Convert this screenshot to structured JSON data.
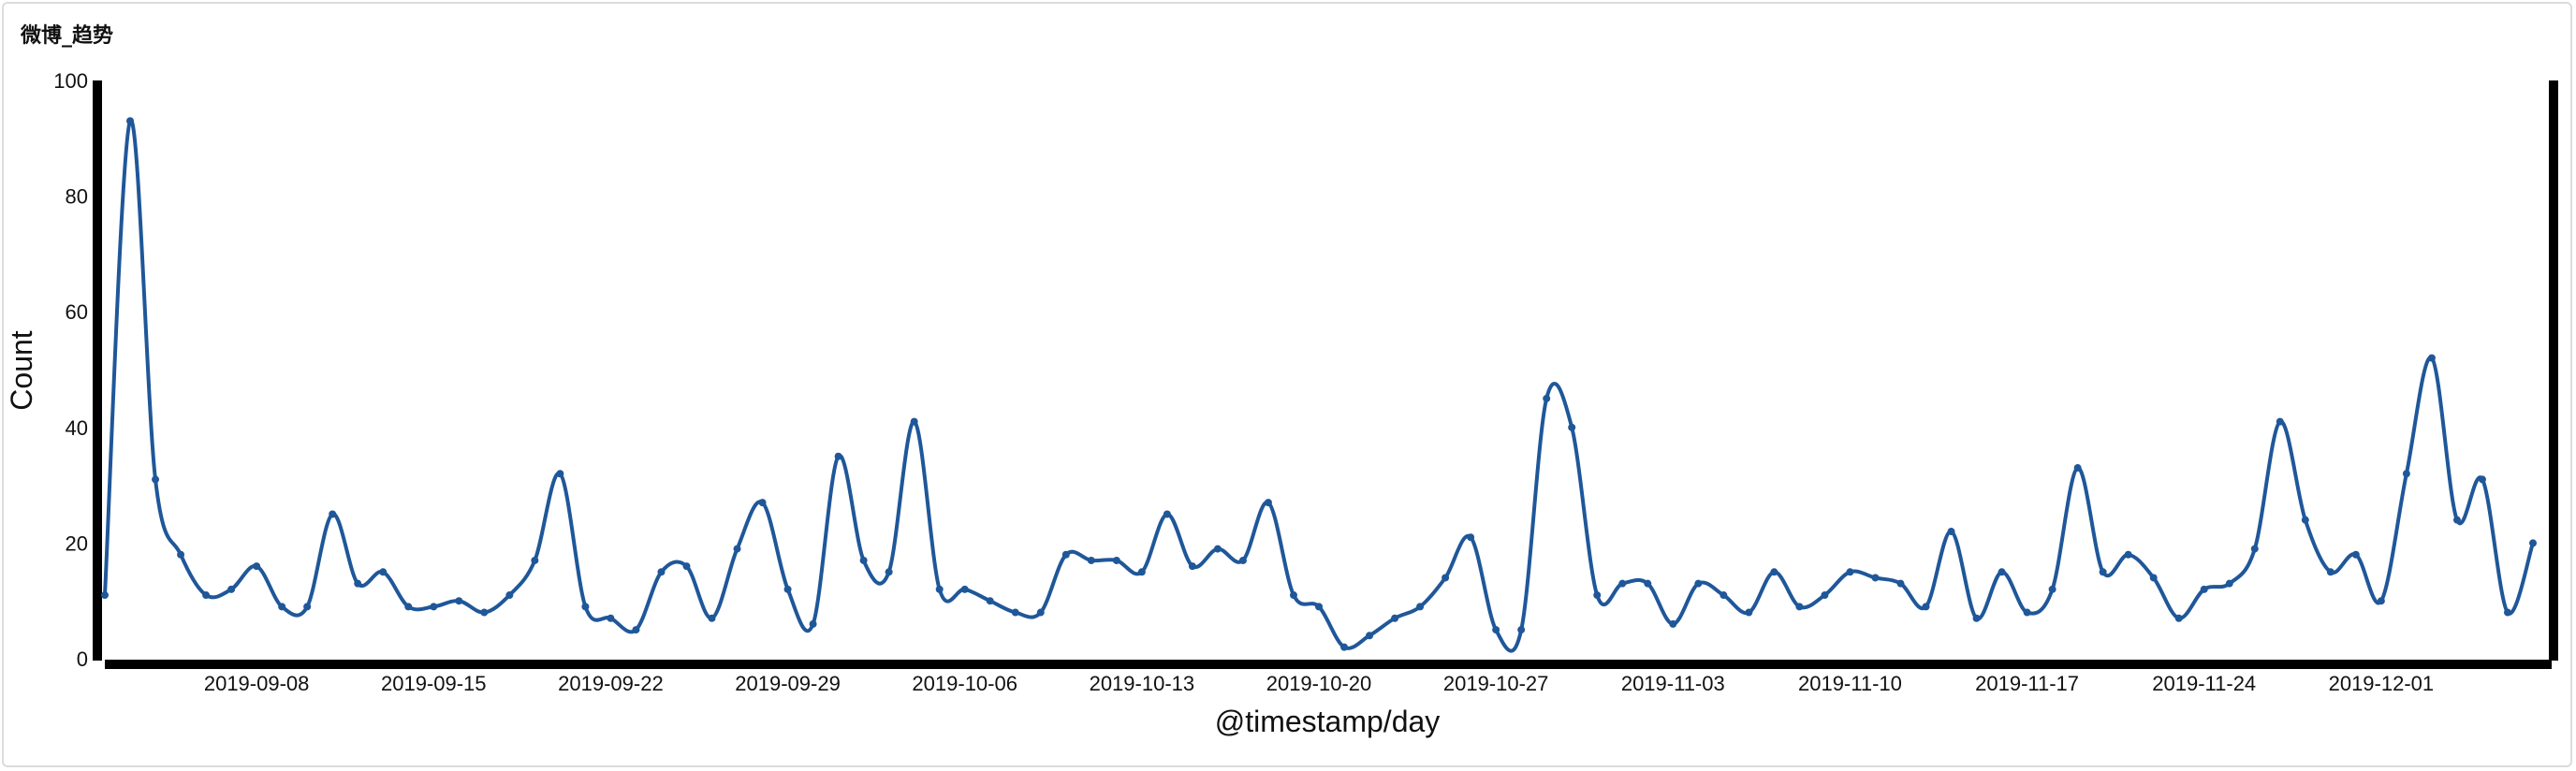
{
  "panel": {
    "title": "微博_趋势"
  },
  "chart_data": {
    "type": "line",
    "xlabel": "@timestamp/day",
    "ylabel": "Count",
    "ylim": [
      0,
      100
    ],
    "yticks": [
      0,
      20,
      40,
      60,
      80,
      100
    ],
    "xticks": [
      "2019-09-08",
      "2019-09-15",
      "2019-09-22",
      "2019-09-29",
      "2019-10-06",
      "2019-10-13",
      "2019-10-20",
      "2019-10-27",
      "2019-11-03",
      "2019-11-10",
      "2019-11-17",
      "2019-11-24",
      "2019-12-01"
    ],
    "grid": false,
    "line_color": "#1f5799",
    "series": [
      {
        "values": [
          11,
          93,
          31,
          18,
          11,
          12,
          16,
          9,
          9,
          25,
          13,
          15,
          9,
          9,
          10,
          8,
          11,
          17,
          32,
          9,
          7,
          5,
          15,
          16,
          7,
          19,
          27,
          12,
          6,
          35,
          17,
          15,
          41,
          12,
          12,
          10,
          8,
          8,
          18,
          17,
          17,
          15,
          25,
          16,
          19,
          17,
          27,
          11,
          9,
          2,
          4,
          7,
          9,
          14,
          21,
          5,
          5,
          45,
          40,
          11,
          13,
          13,
          6,
          13,
          11,
          8,
          15,
          9,
          11,
          15,
          14,
          13,
          9,
          22,
          7,
          15,
          8,
          12,
          33,
          15,
          18,
          14,
          7,
          12,
          13,
          19,
          41,
          24,
          15,
          18,
          10,
          32,
          52,
          24,
          31,
          8,
          20
        ]
      }
    ]
  }
}
